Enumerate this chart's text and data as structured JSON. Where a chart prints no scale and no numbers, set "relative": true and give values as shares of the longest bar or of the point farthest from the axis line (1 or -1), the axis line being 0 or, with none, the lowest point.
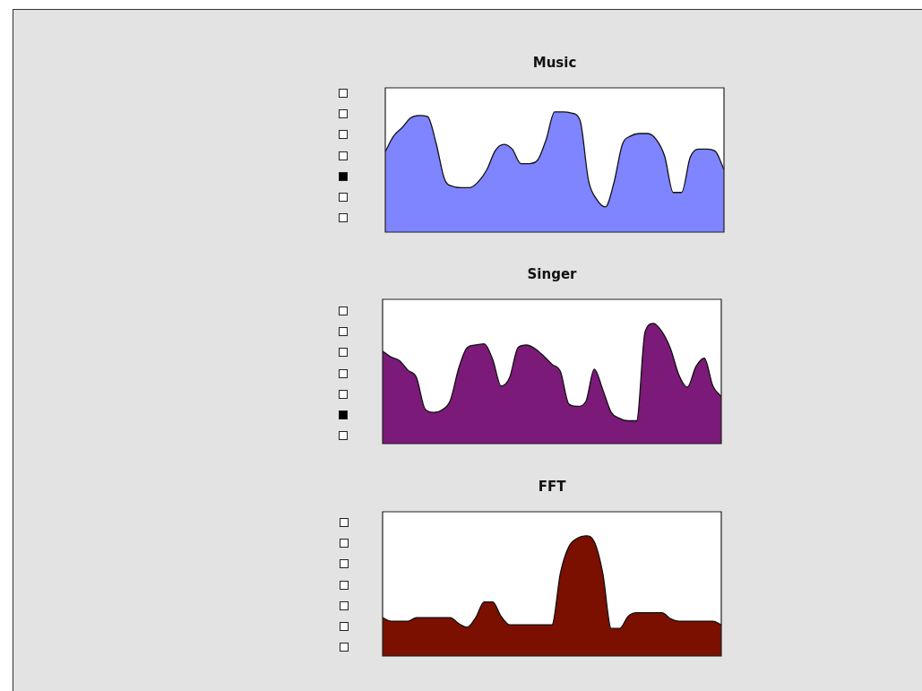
{
  "chart_data": [
    {
      "type": "area",
      "title": "Music",
      "relative": true,
      "marker": "none",
      "color": "#7f84ff",
      "categories": [
        null,
        null,
        null,
        null,
        null,
        null,
        null,
        null,
        null,
        null,
        null,
        null,
        null,
        null,
        null,
        null,
        null,
        null,
        null,
        null,
        null,
        null,
        null,
        null,
        null,
        null,
        null,
        null,
        null,
        null,
        null,
        null,
        null,
        null,
        null,
        null,
        null,
        null,
        null,
        null,
        null
      ],
      "values": [
        0.67,
        0.8,
        0.87,
        0.95,
        0.97,
        0.96,
        0.74,
        0.44,
        0.38,
        0.37,
        0.37,
        0.42,
        0.52,
        0.68,
        0.73,
        0.69,
        0.57,
        0.57,
        0.6,
        0.77,
        1,
        1,
        0.99,
        0.93,
        0.43,
        0.27,
        0.21,
        0.41,
        0.73,
        0.8,
        0.82,
        0.82,
        0.77,
        0.63,
        0.33,
        0.33,
        0.62,
        0.69,
        0.69,
        0.67,
        0.52
      ]
    },
    {
      "type": "area",
      "title": "Singer",
      "relative": true,
      "marker": "none",
      "color": "#7b1a78",
      "categories": [
        null,
        null,
        null,
        null,
        null,
        null,
        null,
        null,
        null,
        null,
        null,
        null,
        null,
        null,
        null,
        null,
        null,
        null,
        null,
        null,
        null,
        null,
        null,
        null,
        null,
        null,
        null,
        null,
        null,
        null,
        null,
        null,
        null,
        null,
        null,
        null,
        null,
        null,
        null,
        null,
        null
      ],
      "values": [
        0.77,
        0.72,
        0.69,
        0.61,
        0.55,
        0.29,
        0.26,
        0.28,
        0.36,
        0.63,
        0.8,
        0.82,
        0.83,
        0.7,
        0.48,
        0.55,
        0.8,
        0.82,
        0.79,
        0.73,
        0.66,
        0.6,
        0.33,
        0.31,
        0.35,
        0.62,
        0.45,
        0.26,
        0.21,
        0.19,
        0.19,
        0.93,
        1,
        0.93,
        0.79,
        0.57,
        0.47,
        0.64,
        0.71,
        0.48,
        0.39
      ]
    },
    {
      "type": "area",
      "title": "FFT",
      "relative": true,
      "marker": "none",
      "color": "#7b0f00",
      "categories": [
        null,
        null,
        null,
        null,
        null,
        null,
        null,
        null,
        null,
        null,
        null,
        null,
        null,
        null,
        null,
        null,
        null,
        null,
        null,
        null,
        null,
        null,
        null,
        null,
        null,
        null,
        null,
        null,
        null,
        null,
        null,
        null,
        null,
        null,
        null,
        null,
        null,
        null,
        null,
        null,
        null
      ],
      "values": [
        0.32,
        0.29,
        0.29,
        0.29,
        0.32,
        0.32,
        0.32,
        0.32,
        0.32,
        0.27,
        0.24,
        0.32,
        0.45,
        0.45,
        0.33,
        0.26,
        0.26,
        0.26,
        0.26,
        0.26,
        0.26,
        0.69,
        0.91,
        0.98,
        1,
        0.95,
        0.69,
        0.23,
        0.23,
        0.33,
        0.36,
        0.36,
        0.36,
        0.36,
        0.31,
        0.29,
        0.29,
        0.29,
        0.29,
        0.29,
        0.26
      ]
    }
  ]
}
